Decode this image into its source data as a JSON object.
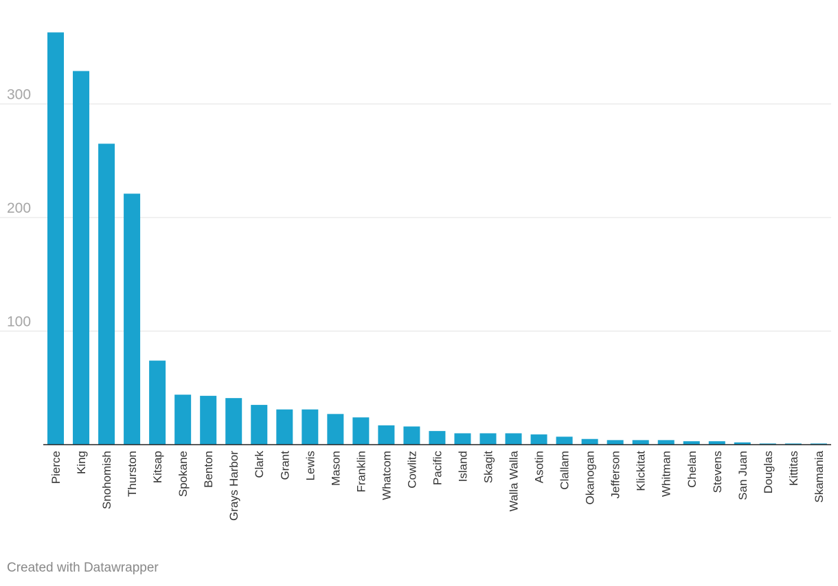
{
  "chart_data": {
    "type": "bar",
    "title": "",
    "xlabel": "",
    "ylabel": "",
    "ylim": [
      0,
      360
    ],
    "yticks": [
      100,
      200,
      300
    ],
    "grid": true,
    "color": "#1aa3cf",
    "categories": [
      "Pierce",
      "King",
      "Snohomish",
      "Thurston",
      "Kitsap",
      "Spokane",
      "Benton",
      "Grays Harbor",
      "Clark",
      "Grant",
      "Lewis",
      "Mason",
      "Franklin",
      "Whatcom",
      "Cowlitz",
      "Pacific",
      "Island",
      "Skagit",
      "Walla Walla",
      "Asotin",
      "Clallam",
      "Okanogan",
      "Jefferson",
      "Klickitat",
      "Whitman",
      "Chelan",
      "Stevens",
      "San Juan",
      "Douglas",
      "Kittitas",
      "Skamania"
    ],
    "values": [
      363,
      329,
      265,
      221,
      74,
      44,
      43,
      41,
      35,
      31,
      31,
      27,
      24,
      17,
      16,
      12,
      10,
      10,
      10,
      9,
      7,
      5,
      4,
      4,
      4,
      3,
      3,
      2,
      1,
      1,
      1
    ]
  },
  "footer": {
    "credit": "Created with Datawrapper"
  }
}
